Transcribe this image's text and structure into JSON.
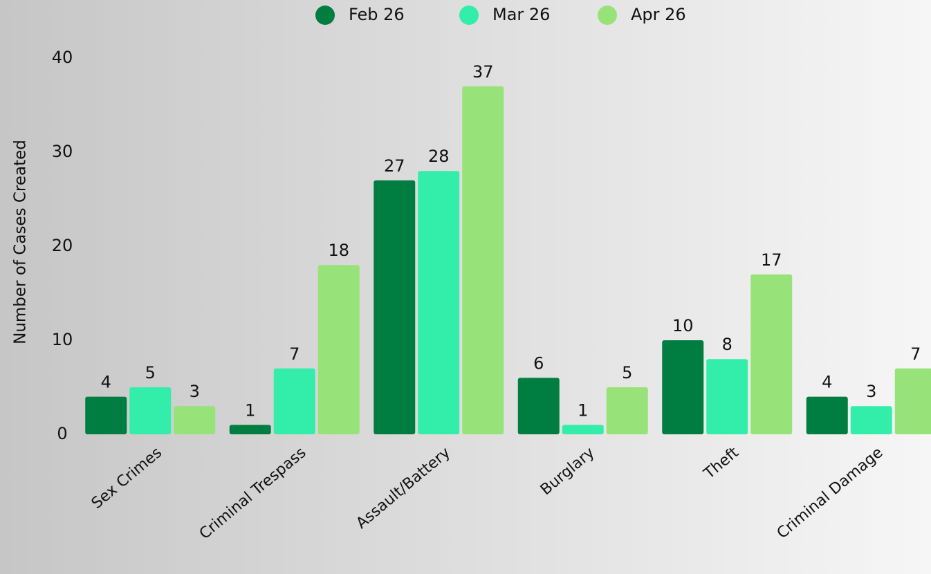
{
  "chart_data": {
    "type": "bar",
    "y_label": "Number of Cases Created",
    "categories": [
      "Sex Crimes",
      "Criminal Trespass",
      "Assault/Battery",
      "Burglary",
      "Theft",
      "Criminal Damage"
    ],
    "series": [
      {
        "name": "Feb 26",
        "color": "#007d40",
        "values": [
          4,
          1,
          27,
          6,
          10,
          4
        ]
      },
      {
        "name": "Mar 26",
        "color": "#33eeaa",
        "values": [
          5,
          7,
          28,
          1,
          8,
          3
        ]
      },
      {
        "name": "Apr 26",
        "color": "#98e27a",
        "values": [
          3,
          18,
          37,
          5,
          17,
          7
        ]
      }
    ],
    "ylim": [
      0,
      40
    ],
    "yticks": [
      0,
      10,
      20,
      30,
      40
    ],
    "grid": false
  }
}
